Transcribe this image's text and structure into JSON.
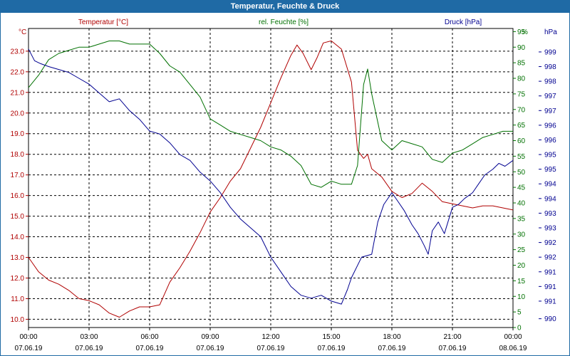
{
  "window": {
    "title": "Temperatur, Feuchte & Druck"
  },
  "chart_data": {
    "type": "line",
    "legend": {
      "temperature": "Temperatur [°C]",
      "humidity": "rel. Feuchte [%]",
      "pressure": "Druck [hPa]"
    },
    "units": {
      "left": "°C",
      "right_inner": "%",
      "right_outer": "hPa"
    },
    "colors": {
      "temperature": "#b00000",
      "humidity": "#007000",
      "pressure": "#000090"
    },
    "grid": true,
    "x_ticks": [
      {
        "time": "00:00",
        "date": "07.06.19"
      },
      {
        "time": "03:00",
        "date": "07.06.19"
      },
      {
        "time": "06:00",
        "date": "07.06.19"
      },
      {
        "time": "09:00",
        "date": "07.06.19"
      },
      {
        "time": "12:00",
        "date": "07.06.19"
      },
      {
        "time": "15:00",
        "date": "07.06.19"
      },
      {
        "time": "18:00",
        "date": "07.06.19"
      },
      {
        "time": "21:00",
        "date": "07.06.19"
      },
      {
        "time": "00:00",
        "date": "08.06.19"
      }
    ],
    "x_range_hours": [
      0,
      24
    ],
    "temperature_axis": {
      "ylim": [
        9.6,
        24.1
      ],
      "ticks": [
        "10.0",
        "11.0",
        "12.0",
        "13.0",
        "14.0",
        "15.0",
        "16.0",
        "17.0",
        "18.0",
        "19.0",
        "20.0",
        "21.0",
        "22.0",
        "23.0"
      ]
    },
    "humidity_axis": {
      "ylim": [
        0,
        96
      ],
      "ticks": [
        "0",
        "5",
        "10",
        "15",
        "20",
        "25",
        "30",
        "35",
        "40",
        "45",
        "50",
        "55",
        "60",
        "65",
        "70",
        "75",
        "80",
        "85",
        "90",
        "95"
      ]
    },
    "pressure_axis": {
      "ylim": [
        989.7,
        999.9
      ],
      "tick_values": [
        990,
        990.6,
        991.1,
        991.6,
        992.1,
        992.6,
        993.1,
        993.6,
        994.1,
        994.6,
        995.1,
        995.6,
        996.1,
        996.6,
        997.1,
        997.6,
        998.1,
        998.6,
        999.1
      ],
      "ticks": [
        "990",
        "991",
        "991",
        "991",
        "992",
        "992",
        "993",
        "993",
        "994",
        "994",
        "995",
        "995",
        "996",
        "996",
        "997",
        "997",
        "998",
        "998",
        "999"
      ]
    },
    "series": [
      {
        "name": "Temperatur [°C]",
        "key": "temperature",
        "x": [
          0,
          0.5,
          1,
          1.5,
          2,
          2.5,
          3,
          3.5,
          4,
          4.5,
          5,
          5.5,
          6,
          6.5,
          7,
          7.5,
          8,
          8.5,
          9,
          9.5,
          10,
          10.5,
          11,
          11.5,
          12,
          12.5,
          13,
          13.3,
          13.6,
          14,
          14.3,
          14.6,
          15,
          15.5,
          16,
          16.3,
          16.6,
          16.8,
          17,
          17.5,
          18,
          18.5,
          19,
          19.5,
          20,
          20.5,
          21,
          21.5,
          22,
          22.5,
          23,
          23.5,
          24
        ],
        "values": [
          13.0,
          12.3,
          11.9,
          11.7,
          11.4,
          11.0,
          10.9,
          10.7,
          10.3,
          10.1,
          10.4,
          10.6,
          10.6,
          10.7,
          11.8,
          12.5,
          13.3,
          14.2,
          15.2,
          15.9,
          16.7,
          17.3,
          18.3,
          19.3,
          20.5,
          21.7,
          22.8,
          23.3,
          22.9,
          22.1,
          22.7,
          23.4,
          23.5,
          23.1,
          21.5,
          18.2,
          17.8,
          18.0,
          17.3,
          16.9,
          16.2,
          15.9,
          16.1,
          16.6,
          16.2,
          15.7,
          15.6,
          15.5,
          15.4,
          15.5,
          15.5,
          15.4,
          15.3
        ]
      },
      {
        "name": "rel. Feuchte [%]",
        "key": "humidity",
        "x": [
          0,
          0.5,
          1,
          1.5,
          2,
          2.5,
          3,
          3.5,
          4,
          4.5,
          5,
          5.5,
          6,
          6.5,
          7,
          7.5,
          8,
          8.5,
          9,
          9.5,
          10,
          10.5,
          11,
          11.5,
          12,
          12.5,
          13,
          13.5,
          14,
          14.5,
          15,
          15.5,
          16,
          16.3,
          16.6,
          16.8,
          17,
          17.5,
          18,
          18.5,
          19,
          19.5,
          20,
          20.5,
          21,
          21.5,
          22,
          22.5,
          23,
          23.5,
          24
        ],
        "values": [
          77,
          81,
          86,
          88,
          89,
          90,
          90,
          91,
          92,
          92,
          91,
          91,
          91,
          88,
          84,
          82,
          78,
          74,
          67,
          65,
          63,
          62,
          61,
          60,
          58,
          57,
          55,
          52,
          46,
          45,
          47,
          46,
          46,
          52,
          78,
          83,
          75,
          60,
          57,
          60,
          59,
          58,
          54,
          53,
          56,
          57,
          59,
          61,
          62,
          63,
          63
        ]
      },
      {
        "name": "Druck [hPa]",
        "key": "pressure",
        "x": [
          0,
          0.3,
          0.6,
          1,
          1.5,
          2,
          2.5,
          3,
          3.5,
          4,
          4.5,
          5,
          5.5,
          6,
          6.5,
          7,
          7.5,
          8,
          8.5,
          9,
          9.5,
          10,
          10.5,
          11,
          11.5,
          12,
          12.5,
          13,
          13.5,
          14,
          14.5,
          15,
          15.5,
          15.8,
          16,
          16.5,
          17,
          17.3,
          17.6,
          18,
          18.3,
          18.6,
          19,
          19.3,
          19.6,
          19.8,
          20,
          20.3,
          20.6,
          21,
          21.3,
          21.6,
          22,
          22.3,
          22.6,
          23,
          23.3,
          23.6,
          24
        ],
        "values": [
          999.2,
          998.8,
          998.7,
          998.6,
          998.5,
          998.4,
          998.2,
          998.0,
          997.7,
          997.4,
          997.5,
          997.1,
          996.8,
          996.4,
          996.3,
          996.0,
          995.6,
          995.4,
          995.0,
          994.7,
          994.3,
          993.8,
          993.4,
          993.1,
          992.8,
          992.1,
          991.6,
          991.1,
          990.8,
          990.7,
          990.8,
          990.6,
          990.5,
          991.0,
          991.4,
          992.1,
          992.2,
          993.3,
          993.9,
          994.3,
          994.0,
          993.7,
          993.2,
          992.9,
          992.5,
          992.2,
          993.0,
          993.3,
          992.9,
          993.8,
          993.9,
          994.1,
          994.3,
          994.6,
          994.9,
          995.1,
          995.3,
          995.2,
          995.4
        ]
      }
    ]
  }
}
